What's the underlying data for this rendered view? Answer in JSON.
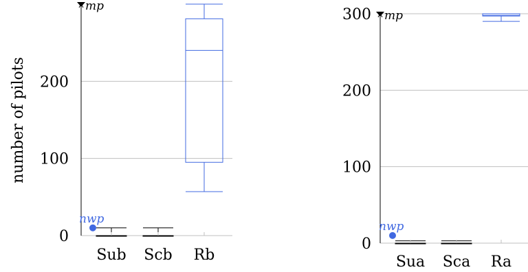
{
  "chart_data": [
    {
      "type": "box",
      "ylabel": "number of pilots",
      "ylim": [
        0,
        300
      ],
      "ytick_labels": [
        "0",
        "100",
        "200"
      ],
      "yticks": [
        0,
        100,
        200
      ],
      "categories": [
        "Sub",
        "Scb",
        "Rb"
      ],
      "boxes": [
        {
          "label": "Sub",
          "min": 0,
          "q1": 0,
          "median": 0,
          "q3": 0,
          "max": 10
        },
        {
          "label": "Scb",
          "min": 0,
          "q1": 0,
          "median": 0,
          "q3": 0,
          "max": 10
        },
        {
          "label": "Rb",
          "min": 57,
          "q1": 95,
          "median": 240,
          "q3": 281,
          "max": 300
        }
      ],
      "markers": [
        {
          "label": "mp",
          "y": 300,
          "color": "#000000"
        },
        {
          "label": "nwp",
          "y": 10,
          "color": "#4169e1"
        }
      ],
      "grid": true
    },
    {
      "type": "box",
      "ylabel": "",
      "ylim": [
        0,
        300
      ],
      "ytick_labels": [
        "0",
        "100",
        "200",
        "300"
      ],
      "yticks": [
        0,
        100,
        200,
        300
      ],
      "categories": [
        "Sua",
        "Sca",
        "Ra"
      ],
      "boxes": [
        {
          "label": "Sua",
          "min": 0,
          "q1": 0,
          "median": 0,
          "q3": 0,
          "max": 3
        },
        {
          "label": "Sca",
          "min": 0,
          "q1": 0,
          "median": 0,
          "q3": 0,
          "max": 3
        },
        {
          "label": "Ra",
          "min": 290,
          "q1": 297,
          "median": 298,
          "q3": 300,
          "max": 300
        }
      ],
      "markers": [
        {
          "label": "mp",
          "y": 300,
          "color": "#000000"
        },
        {
          "label": "nwp",
          "y": 10,
          "color": "#4169e1"
        }
      ],
      "grid": true
    }
  ],
  "colors": {
    "box": "#4169e1",
    "black": "#000000",
    "grid": "#bfbfbf"
  }
}
